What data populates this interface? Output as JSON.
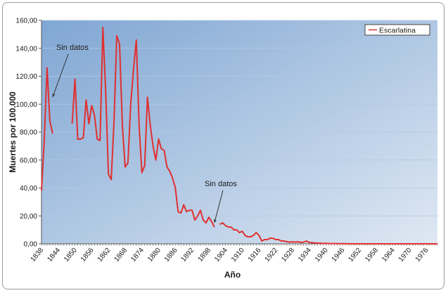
{
  "chart_data": {
    "type": "line",
    "title": "",
    "xlabel": "Año",
    "ylabel": "Muertes por 100.000",
    "xlim": [
      1838,
      1980
    ],
    "ylim": [
      0,
      160
    ],
    "y_ticks": [
      "0,00",
      "20,00",
      "40,00",
      "60,00",
      "80,00",
      "100,00",
      "120,00",
      "140,00",
      "160,00"
    ],
    "x_ticks": [
      "1838",
      "1844",
      "1850",
      "1856",
      "1862",
      "1868",
      "1874",
      "1880",
      "1886",
      "1892",
      "1898",
      "1904",
      "1910",
      "1916",
      "1922",
      "1928",
      "1934",
      "1940",
      "1946",
      "1952",
      "1958",
      "1964",
      "1970",
      "1976"
    ],
    "grid": true,
    "legend_position": "top-right",
    "colors": {
      "series": "#e03030",
      "plot_bg_start": "#7fa6d3",
      "plot_bg_end": "#dfe8f3"
    },
    "series": [
      {
        "name": "Escarlatina",
        "segments": [
          [
            [
              1838,
              38
            ],
            [
              1839,
              75
            ],
            [
              1840,
              126
            ],
            [
              1841,
              88
            ],
            [
              1842,
              79
            ]
          ],
          [
            [
              1849,
              86
            ],
            [
              1850,
              118
            ],
            [
              1851,
              75
            ],
            [
              1852,
              75
            ],
            [
              1853,
              76
            ],
            [
              1854,
              103
            ],
            [
              1855,
              86
            ],
            [
              1856,
              99
            ],
            [
              1857,
              92
            ],
            [
              1858,
              75
            ],
            [
              1859,
              74
            ],
            [
              1860,
              155
            ],
            [
              1861,
              110
            ],
            [
              1862,
              50
            ],
            [
              1863,
              46
            ],
            [
              1864,
              87
            ],
            [
              1865,
              149
            ],
            [
              1866,
              143
            ],
            [
              1867,
              85
            ],
            [
              1868,
              55
            ],
            [
              1869,
              58
            ],
            [
              1870,
              100
            ],
            [
              1871,
              125
            ],
            [
              1872,
              146
            ],
            [
              1873,
              85
            ],
            [
              1874,
              51
            ],
            [
              1875,
              56
            ],
            [
              1876,
              105
            ],
            [
              1877,
              85
            ],
            [
              1878,
              70
            ],
            [
              1879,
              60
            ],
            [
              1880,
              75
            ],
            [
              1881,
              68
            ],
            [
              1882,
              67
            ],
            [
              1883,
              55
            ],
            [
              1884,
              52
            ],
            [
              1885,
              47
            ],
            [
              1886,
              40
            ],
            [
              1887,
              23
            ],
            [
              1888,
              22
            ],
            [
              1889,
              28
            ],
            [
              1890,
              23
            ],
            [
              1891,
              24
            ],
            [
              1892,
              24
            ],
            [
              1893,
              17
            ],
            [
              1894,
              20
            ],
            [
              1895,
              24
            ],
            [
              1896,
              17
            ],
            [
              1897,
              15
            ],
            [
              1898,
              19
            ],
            [
              1899,
              16
            ],
            [
              1900,
              12
            ]
          ],
          [
            [
              1902,
              14
            ],
            [
              1903,
              15
            ],
            [
              1904,
              13
            ],
            [
              1905,
              12
            ],
            [
              1906,
              12
            ],
            [
              1907,
              10
            ],
            [
              1908,
              10
            ],
            [
              1909,
              8
            ],
            [
              1910,
              9
            ],
            [
              1911,
              6
            ],
            [
              1912,
              5
            ],
            [
              1913,
              5
            ],
            [
              1914,
              6
            ],
            [
              1915,
              8
            ],
            [
              1916,
              6
            ],
            [
              1917,
              2
            ],
            [
              1918,
              3
            ],
            [
              1919,
              3
            ],
            [
              1920,
              4
            ],
            [
              1921,
              4
            ],
            [
              1922,
              3
            ],
            [
              1923,
              3
            ],
            [
              1924,
              2
            ],
            [
              1925,
              2
            ],
            [
              1926,
              1.5
            ],
            [
              1927,
              1.2
            ],
            [
              1928,
              1.5
            ],
            [
              1929,
              1.2
            ],
            [
              1930,
              1.5
            ],
            [
              1931,
              1.0
            ],
            [
              1932,
              1.2
            ],
            [
              1933,
              2.0
            ],
            [
              1934,
              1.0
            ],
            [
              1935,
              0.8
            ],
            [
              1936,
              0.6
            ],
            [
              1937,
              0.5
            ],
            [
              1938,
              0.4
            ],
            [
              1939,
              0.3
            ],
            [
              1940,
              0.3
            ],
            [
              1941,
              0.2
            ],
            [
              1942,
              0.2
            ],
            [
              1943,
              0.2
            ],
            [
              1944,
              0.1
            ],
            [
              1945,
              0.1
            ],
            [
              1946,
              0.1
            ],
            [
              1950,
              0
            ],
            [
              1955,
              0
            ],
            [
              1960,
              0
            ],
            [
              1965,
              0
            ],
            [
              1970,
              0
            ],
            [
              1975,
              0
            ],
            [
              1980,
              0
            ]
          ]
        ]
      }
    ],
    "annotations": [
      {
        "text": "Sin datos",
        "point_to": [
          1842,
          103
        ]
      },
      {
        "text": "Sin datos",
        "point_to": [
          1900,
          13
        ]
      }
    ]
  }
}
